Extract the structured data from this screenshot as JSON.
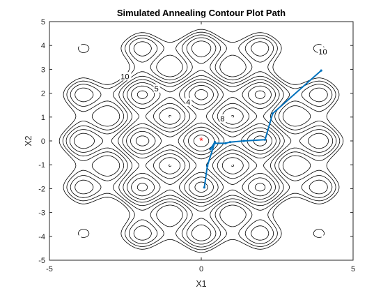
{
  "chart_data": {
    "type": "contour",
    "title": "Simulated Annealing Contour Plot Path",
    "xlabel": "X1",
    "ylabel": "X2",
    "xlim": [
      -5,
      5
    ],
    "ylim": [
      -5,
      5
    ],
    "x_ticks": [
      -5,
      0,
      5
    ],
    "y_ticks": [
      -5,
      -4,
      -3,
      -2,
      -1,
      0,
      1,
      2,
      3,
      4,
      5
    ],
    "x_tick_labels": [
      "-5",
      "0",
      "5"
    ],
    "y_tick_labels": [
      "-5",
      "-4",
      "-3",
      "-2",
      "-1",
      "0",
      "1",
      "2",
      "3",
      "4",
      "5"
    ],
    "grid": false,
    "contour_levels": [
      1,
      2,
      3,
      4,
      5,
      6,
      7,
      8,
      9,
      10
    ],
    "contour_label_values": [
      "2",
      "1",
      "3",
      "4",
      "5",
      "6",
      "7",
      "8",
      "9",
      "10"
    ],
    "path": {
      "color": "#0072bd",
      "x": [
        3.95,
        2.35,
        2.1,
        1.4,
        0.95,
        0.8,
        0.45,
        0.3,
        0.45,
        0.2,
        0.1
      ],
      "y": [
        2.95,
        1.15,
        0.05,
        0.0,
        -0.05,
        -0.1,
        -0.1,
        -0.35,
        -0.05,
        -1.05,
        -1.95
      ]
    },
    "start_marker": {
      "x": 0,
      "y": 0,
      "symbol": "*",
      "color": "#ff0000"
    }
  }
}
